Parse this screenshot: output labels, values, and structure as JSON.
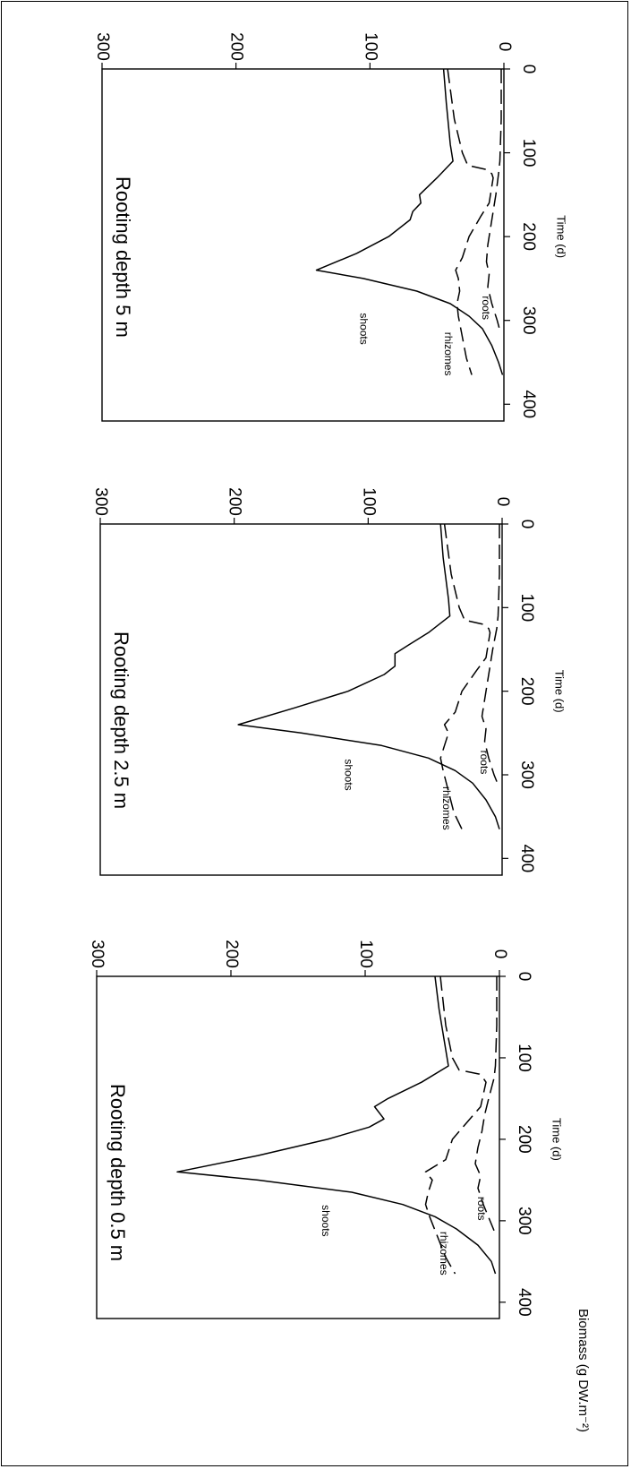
{
  "figure": {
    "shared_ylabel": "Biomass (g DW.m⁻²)",
    "rotation": "90deg-clockwise"
  },
  "chart_data": [
    {
      "type": "line",
      "title": "Rooting depth 0.5 m",
      "xlabel": "Time (d)",
      "ylabel": "",
      "xlim": [
        0,
        420
      ],
      "ylim": [
        0,
        300
      ],
      "xticks": [
        0,
        100,
        200,
        300,
        400
      ],
      "yticks": [
        0,
        100,
        200,
        300
      ],
      "grid": false,
      "series": [
        {
          "name": "shoots",
          "style": "solid",
          "x": [
            0,
            40,
            90,
            110,
            130,
            150,
            160,
            175,
            185,
            200,
            220,
            240,
            250,
            265,
            280,
            295,
            310,
            330,
            350,
            365
          ],
          "y": [
            48,
            45,
            40,
            38,
            58,
            83,
            93,
            86,
            97,
            128,
            180,
            240,
            180,
            110,
            72,
            48,
            32,
            16,
            6,
            3
          ]
        },
        {
          "name": "rhizomes",
          "style": "dashed",
          "x": [
            0,
            60,
            100,
            115,
            120,
            125,
            130,
            160,
            175,
            200,
            225,
            240,
            250,
            265,
            280,
            295,
            320,
            345,
            365
          ],
          "y": [
            44,
            40,
            35,
            30,
            15,
            12,
            10,
            14,
            22,
            35,
            40,
            55,
            50,
            53,
            55,
            52,
            46,
            40,
            33
          ]
        },
        {
          "name": "roots",
          "style": "dashed",
          "x": [
            0,
            60,
            110,
            125,
            150,
            170,
            190,
            210,
            230,
            245,
            260,
            280,
            300,
            312
          ],
          "y": [
            2,
            2,
            3,
            4,
            8,
            11,
            13,
            16,
            18,
            14,
            16,
            12,
            7,
            4
          ]
        }
      ]
    },
    {
      "type": "line",
      "title": "Rooting depth 2.5 m",
      "xlabel": "Time (d)",
      "ylabel": "",
      "xlim": [
        0,
        420
      ],
      "ylim": [
        0,
        300
      ],
      "xticks": [
        0,
        100,
        200,
        300,
        400
      ],
      "yticks": [
        0,
        100,
        200,
        300
      ],
      "grid": false,
      "series": [
        {
          "name": "shoots",
          "style": "solid",
          "x": [
            0,
            40,
            90,
            110,
            130,
            145,
            155,
            170,
            180,
            200,
            220,
            240,
            250,
            265,
            280,
            295,
            310,
            330,
            350,
            365
          ],
          "y": [
            46,
            44,
            40,
            39,
            55,
            70,
            80,
            80,
            88,
            115,
            155,
            197,
            150,
            90,
            55,
            35,
            22,
            12,
            5,
            2
          ]
        },
        {
          "name": "rhizomes",
          "style": "dashed",
          "x": [
            0,
            60,
            100,
            115,
            120,
            125,
            130,
            160,
            175,
            200,
            225,
            240,
            250,
            265,
            280,
            295,
            320,
            345,
            365
          ],
          "y": [
            43,
            38,
            32,
            28,
            14,
            10,
            9,
            12,
            19,
            30,
            35,
            43,
            40,
            43,
            46,
            44,
            40,
            36,
            30
          ]
        },
        {
          "name": "roots",
          "style": "dashed",
          "x": [
            0,
            60,
            110,
            125,
            150,
            170,
            190,
            210,
            230,
            245,
            260,
            280,
            300,
            312
          ],
          "y": [
            2,
            2,
            3,
            4,
            7,
            9,
            11,
            13,
            15,
            12,
            13,
            10,
            6,
            3
          ]
        }
      ]
    },
    {
      "type": "line",
      "title": "Rooting depth 5 m",
      "xlabel": "Time (d)",
      "ylabel": "",
      "xlim": [
        0,
        420
      ],
      "ylim": [
        0,
        300
      ],
      "xticks": [
        0,
        100,
        200,
        300,
        400
      ],
      "yticks": [
        0,
        100,
        200,
        300
      ],
      "grid": false,
      "series": [
        {
          "name": "shoots",
          "style": "solid",
          "x": [
            0,
            40,
            90,
            110,
            130,
            150,
            160,
            170,
            180,
            200,
            220,
            240,
            250,
            265,
            280,
            295,
            310,
            330,
            350,
            365
          ],
          "y": [
            45,
            43,
            40,
            38,
            50,
            63,
            62,
            68,
            70,
            86,
            110,
            140,
            105,
            65,
            40,
            26,
            16,
            9,
            4,
            1
          ]
        },
        {
          "name": "rhizomes",
          "style": "dashed",
          "x": [
            0,
            60,
            100,
            115,
            120,
            125,
            130,
            160,
            175,
            200,
            225,
            240,
            250,
            265,
            280,
            295,
            320,
            345,
            365
          ],
          "y": [
            42,
            37,
            31,
            27,
            13,
            9,
            8,
            11,
            17,
            26,
            31,
            36,
            34,
            33,
            35,
            34,
            31,
            28,
            24
          ]
        },
        {
          "name": "roots",
          "style": "dashed",
          "x": [
            0,
            60,
            110,
            125,
            150,
            170,
            190,
            210,
            230,
            245,
            260,
            280,
            300,
            312
          ],
          "y": [
            2,
            2,
            3,
            4,
            6,
            8,
            10,
            12,
            13,
            11,
            12,
            9,
            5,
            3
          ]
        }
      ]
    }
  ]
}
